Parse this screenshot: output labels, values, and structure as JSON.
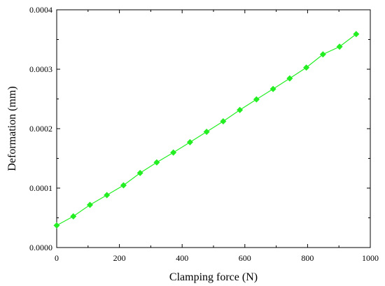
{
  "chart_data": {
    "type": "line",
    "xlabel": "Clamping force (N)",
    "ylabel": "Deformation (mm)",
    "xlim": [
      0,
      1000
    ],
    "ylim": [
      0,
      0.0004
    ],
    "x_ticks": [
      0,
      200,
      400,
      600,
      800,
      1000
    ],
    "y_ticks": [
      0.0,
      0.0001,
      0.0002,
      0.0003,
      0.0004
    ],
    "x_tick_labels": [
      "0",
      "200",
      "400",
      "600",
      "800",
      "1000"
    ],
    "y_tick_labels": [
      "0.0000",
      "0.0001",
      "0.0002",
      "0.0003",
      "0.0004"
    ],
    "grid": false,
    "marker": "diamond",
    "series": [
      {
        "color": "#22ee22",
        "x": [
          0,
          53,
          106,
          160,
          213,
          266,
          319,
          372,
          425,
          478,
          531,
          584,
          637,
          690,
          743,
          796,
          849,
          902,
          955
        ],
        "y": [
          3.72e-05,
          5.25e-05,
          7.18e-05,
          8.82e-05,
          0.0001047,
          0.0001254,
          0.0001433,
          0.0001598,
          0.0001772,
          0.0001947,
          0.0002124,
          0.0002315,
          0.0002493,
          0.0002668,
          0.0002845,
          0.0003028,
          0.000325,
          0.0003379,
          0.0003591
        ]
      }
    ]
  }
}
